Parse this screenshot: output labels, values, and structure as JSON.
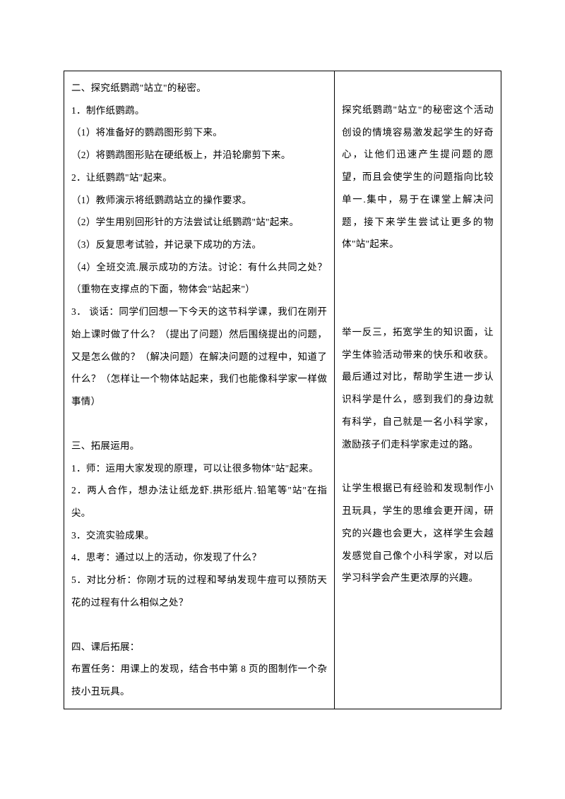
{
  "leftColumn": {
    "section2": {
      "title": "二、探究纸鹦鹉\"站立\"的秘密。",
      "item1": {
        "title": "1．制作纸鹦鹉。",
        "sub1": "（1）将准备好的鹦鹉图形剪下来。",
        "sub2": "（2）将鹦鹉图形贴在硬纸板上，并沿轮廓剪下来。"
      },
      "item2": {
        "title": "2．让纸鹦鹉\"站\"起来。",
        "sub1": "（1）教师演示将纸鹦鹉站立的操作要求。",
        "sub2": "（2）学生用别回形针的方法尝试让纸鹦鹉\"站\"起来。",
        "sub3": "（3）反复思考试验，并记录下成功的方法。",
        "sub4": "（4）全班交流.展示成功的方法。讨论：有什么共同之处？（重物在支撑点的下面，物体会\"站起来\"）"
      },
      "item3": "3．  谈话：同学们回想一下今天的这节科学课，我们在刚开始上课时做了什么？（提出了问题）然后围绕提出的问题，又是怎么做的？（解决问题）在解决问题的过程中，知道了什么？（怎样让一个物体站起来，我们也能像科学家一样做事情）"
    },
    "section3": {
      "title": "三、拓展运用。",
      "item1": "1．师：运用大家发现的原理，可以让很多物体\"站\"起来。",
      "item2": "2．两人合作，想办法让纸龙虾.拱形纸片.铅笔等\"站\"在指尖。",
      "item3": "3．交流实验成果。",
      "item4": "4．思考：通过以上的活动，你发现了什么？",
      "item5": "5．对比分析：你刚才玩的过程和琴纳发现牛痘可以预防天花的过程有什么相似之处？"
    },
    "section4": {
      "title": "四、课后拓展：",
      "content": "布置任务：用课上的发现，结合书中第 8 页的图制作一个杂技小丑玩具。"
    }
  },
  "rightColumn": {
    "para1": "探究纸鹦鹉\"站立\"的秘密这个活动创设的情境容易激发起学生的好奇心，让他们迅速产生提问题的愿望，而且会使学生的问题指向比较单一.集中，易于在课堂上解决问题，接下来学生尝试让更多的物体\"站\"起来。",
    "para2": "举一反三，拓宽学生的知识面，让学生体验活动带来的快乐和收获。最后通过对比，帮助学生进一步认识科学是什么，感到我们的身边就有科学，自己就是一名小科学家，激励孩子们走科学家走过的路。",
    "para3": "让学生根据已有经验和发现制作小丑玩具，学生的思维会更开阔，研究的兴趣也会更大，这样学生会越发感觉自己像个小科学家，对以后学习科学会产生更浓厚的兴趣。"
  }
}
